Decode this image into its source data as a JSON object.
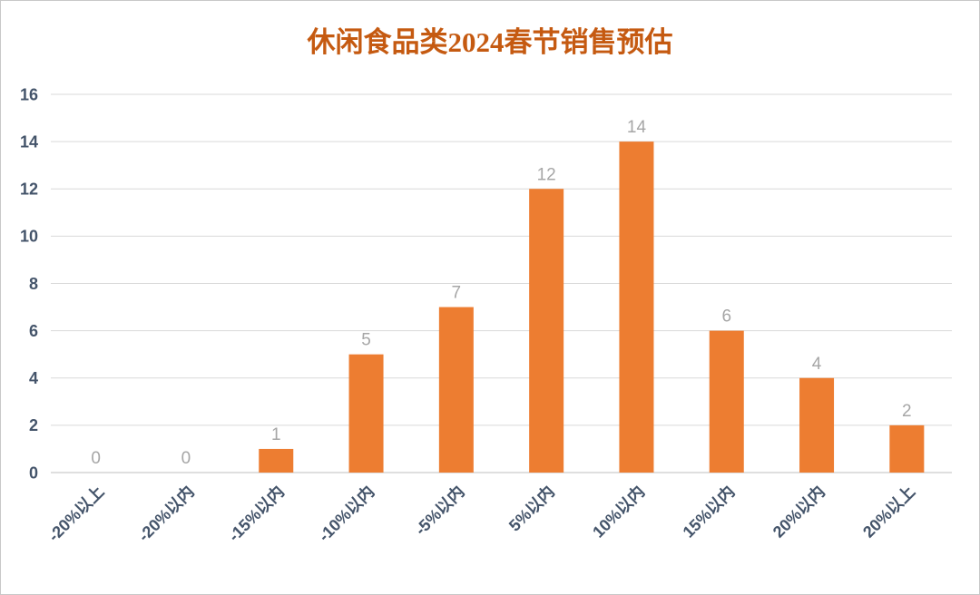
{
  "chart": {
    "title_label": "休闲食品类2024春节销售预估"
  },
  "chart_data": {
    "type": "bar",
    "title": "休闲食品类2024春节销售预估",
    "categories": [
      "-20%以上",
      "-20%以内",
      "-15%以内",
      "-10%以内",
      "-5%以内",
      "5%以内",
      "10%以内",
      "15%以内",
      "20%以内",
      "20%以上"
    ],
    "values": [
      0,
      0,
      1,
      5,
      7,
      12,
      14,
      6,
      4,
      2
    ],
    "xlabel": "",
    "ylabel": "",
    "ylim": [
      0,
      16
    ],
    "ytick_step": 2,
    "ytick_labels": [
      "0",
      "2",
      "4",
      "6",
      "8",
      "10",
      "12",
      "14",
      "16"
    ],
    "grid": true,
    "legend": "none",
    "data_labels": true,
    "colors": {
      "bar": "#ED7D31",
      "title": "#C55A11",
      "axis_text": "#44546A",
      "value_label": "#A6A6A6",
      "gridline": "#D9D9D9",
      "axis_line": "#BFBFBF",
      "background": "#FFFFFF"
    }
  }
}
